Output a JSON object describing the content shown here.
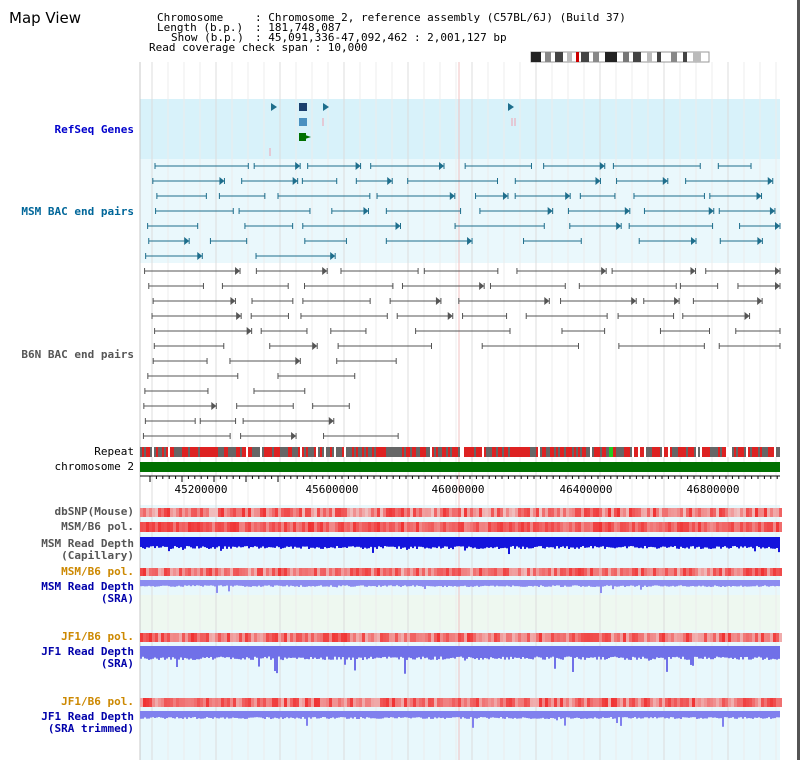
{
  "title": "Map View",
  "header": {
    "chromosome_key": "Chromosome",
    "chromosome_val": ": Chromosome 2, reference assembly (C57BL/6J) (Build 37)",
    "length_key": "Length (b.p.)",
    "length_val": ": 181,748,087",
    "show_key": "Show (b.p.)",
    "show_val": ": 45,091,336-47,092,462 : 2,001,127 bp",
    "coverage": "Read coverage check span : 10,000"
  },
  "tracks": {
    "refseq": "RefSeq Genes",
    "msm_bac": "MSM BAC end pairs",
    "b6n_bac": "B6N BAC end pairs",
    "repeat": "Repeat",
    "chromosome": "chromosome 2",
    "dbsnp": "dbSNP(Mouse)",
    "msm_b6_pol": "MSM/B6 pol.",
    "msm_depth_cap_1": "MSM Read Depth",
    "msm_depth_cap_2": "(Capillary)",
    "msm_b6_pol_2": "MSM/B6 pol.",
    "msm_depth_sra_1": "MSM Read Depth",
    "msm_depth_sra_2": "(SRA)",
    "jf1_b6_pol": "JF1/B6 pol.",
    "jf1_depth_sra_1": "JF1 Read Depth",
    "jf1_depth_sra_2": "(SRA)",
    "jf1_b6_pol_2": "JF1/B6 pol.",
    "jf1_depth_trim_1": "JF1 Read Depth",
    "jf1_depth_trim_2": "(SRA trimmed)"
  },
  "axis_ticks": [
    "45200000",
    "45600000",
    "46000000",
    "46400000",
    "46800000"
  ],
  "colors": {
    "refseq_label": "#0000cc",
    "msm_label": "#006699",
    "b6n_label": "#555555",
    "pol_label": "#cc8800",
    "depth_label": "#0000aa",
    "msm_bac": "#1e6e8c",
    "b6n_bac": "#555555",
    "chromosome": "#007000"
  }
}
